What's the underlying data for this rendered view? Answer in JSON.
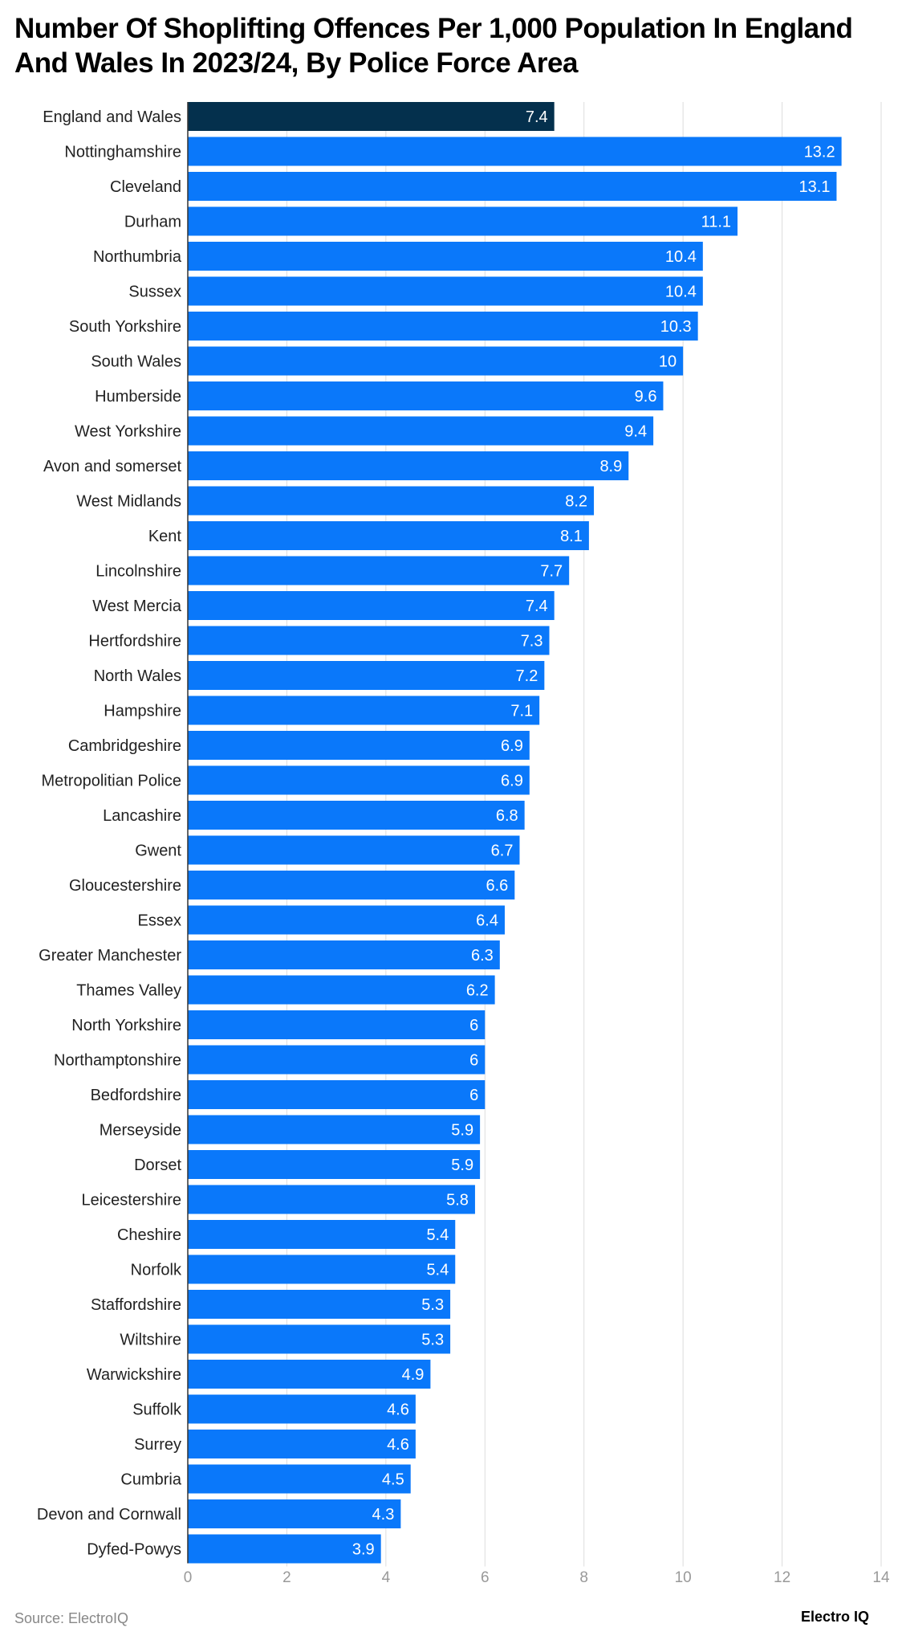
{
  "title": "Number Of Shoplifting Offences Per 1,000 Population In England And Wales In 2023/24, By Police Force Area",
  "source": "Source: ElectroIQ",
  "brand": "Electro IQ",
  "colors": {
    "highlight": "#04304d",
    "bar": "#0a78fa",
    "grid": "#dddddd",
    "tick": "#999999"
  },
  "chart_data": {
    "type": "bar",
    "orientation": "horizontal",
    "title": "Number Of Shoplifting Offences Per 1,000 Population In England And Wales In 2023/24, By Police Force Area",
    "xlim": [
      0,
      14
    ],
    "xticks": [
      0,
      2,
      4,
      6,
      8,
      10,
      12,
      14
    ],
    "grid": true,
    "categories": [
      "England and Wales",
      "Nottinghamshire",
      "Cleveland",
      "Durham",
      "Northumbria",
      "Sussex",
      "South Yorkshire",
      "South Wales",
      "Humberside",
      "West Yorkshire",
      "Avon and somerset",
      "West Midlands",
      "Kent",
      "Lincolnshire",
      "West Mercia",
      "Hertfordshire",
      "North Wales",
      "Hampshire",
      "Cambridgeshire",
      "Metropolitian Police",
      "Lancashire",
      "Gwent",
      "Gloucestershire",
      "Essex",
      "Greater Manchester",
      "Thames Valley",
      "North Yorkshire",
      "Northamptonshire",
      "Bedfordshire",
      "Merseyside",
      "Dorset",
      "Leicestershire",
      "Cheshire",
      "Norfolk",
      "Staffordshire",
      "Wiltshire",
      "Warwickshire",
      "Suffolk",
      "Surrey",
      "Cumbria",
      "Devon and Cornwall",
      "Dyfed-Powys"
    ],
    "values": [
      7.4,
      13.2,
      13.1,
      11.1,
      10.4,
      10.4,
      10.3,
      10,
      9.6,
      9.4,
      8.9,
      8.2,
      8.1,
      7.7,
      7.4,
      7.3,
      7.2,
      7.1,
      6.9,
      6.9,
      6.8,
      6.7,
      6.6,
      6.4,
      6.3,
      6.2,
      6,
      6,
      6,
      5.9,
      5.9,
      5.8,
      5.4,
      5.4,
      5.3,
      5.3,
      4.9,
      4.6,
      4.6,
      4.5,
      4.3,
      3.9
    ],
    "highlighted": [
      "England and Wales"
    ]
  }
}
